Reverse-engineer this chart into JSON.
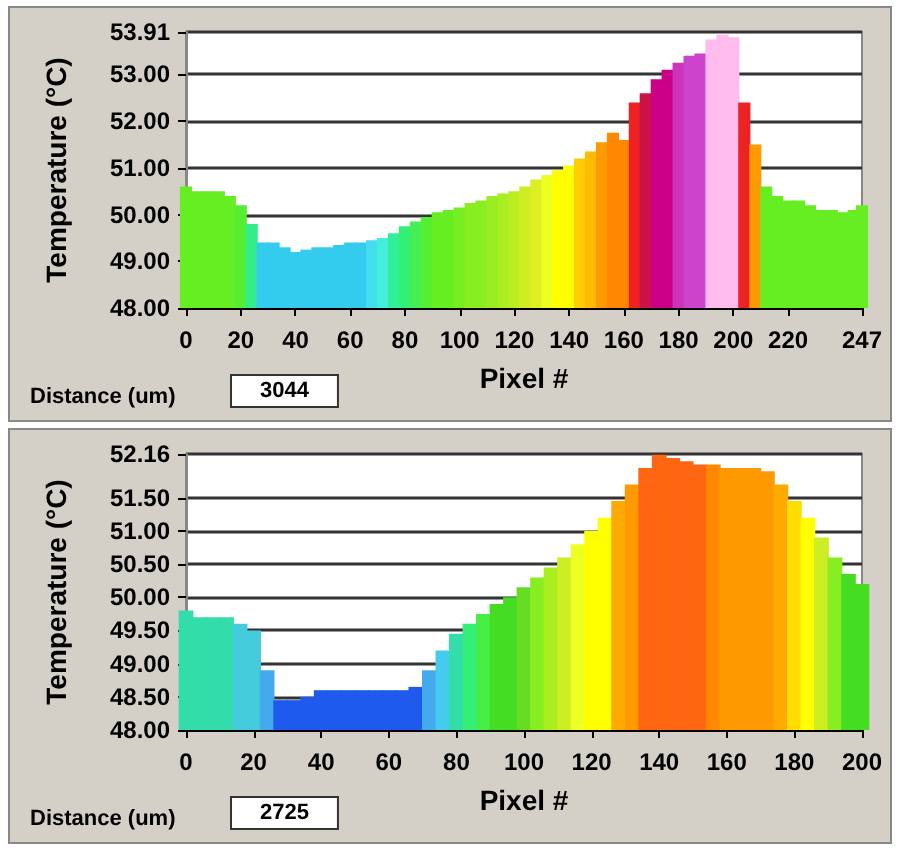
{
  "chart_data": [
    {
      "type": "bar",
      "xlabel": "Pixel #",
      "ylabel": "Temperature (°C)",
      "annotations": [
        "Distance (um)",
        "3044"
      ],
      "x": [
        0,
        4,
        8,
        12,
        16,
        20,
        24,
        28,
        32,
        36,
        40,
        44,
        48,
        52,
        56,
        60,
        64,
        68,
        72,
        76,
        80,
        84,
        88,
        92,
        96,
        100,
        104,
        108,
        112,
        116,
        120,
        124,
        128,
        132,
        136,
        140,
        144,
        148,
        152,
        156,
        160,
        164,
        168,
        172,
        176,
        180,
        184,
        188,
        192,
        196,
        200,
        204,
        208,
        212,
        216,
        220,
        224,
        228,
        232,
        236,
        240,
        244,
        247
      ],
      "values": [
        50.6,
        50.5,
        50.5,
        50.5,
        50.4,
        50.2,
        49.8,
        49.4,
        49.4,
        49.3,
        49.2,
        49.25,
        49.3,
        49.3,
        49.35,
        49.4,
        49.4,
        49.45,
        49.5,
        49.6,
        49.75,
        49.85,
        49.95,
        50.05,
        50.1,
        50.15,
        50.25,
        50.3,
        50.4,
        50.45,
        50.5,
        50.6,
        50.75,
        50.85,
        50.95,
        51.05,
        51.2,
        51.35,
        51.55,
        51.75,
        51.6,
        52.4,
        52.6,
        52.9,
        53.1,
        53.25,
        53.4,
        53.45,
        53.75,
        53.85,
        53.8,
        52.4,
        51.5,
        50.6,
        50.4,
        50.3,
        50.3,
        50.2,
        50.1,
        50.1,
        50.05,
        50.1,
        50.2
      ],
      "colors": [
        "#66ee22",
        "#66ee22",
        "#66ee22",
        "#66ee22",
        "#66ee22",
        "#55ee33",
        "#33ee88",
        "#33ccee",
        "#33ccee",
        "#33ccee",
        "#33ccee",
        "#33ccee",
        "#33ccee",
        "#33ccee",
        "#33ccee",
        "#33ccee",
        "#33ccee",
        "#44ddee",
        "#44eedd",
        "#33ee99",
        "#33ee77",
        "#44ee55",
        "#55ee33",
        "#66ee22",
        "#66ee22",
        "#77ee22",
        "#88ee22",
        "#88ee22",
        "#99ee22",
        "#aaee22",
        "#bbee22",
        "#ccee22",
        "#ddee22",
        "#eeff22",
        "#ffff00",
        "#ffff00",
        "#ffcc00",
        "#ffbb00",
        "#ff9900",
        "#ff8800",
        "#ff8800",
        "#ee2222",
        "#cc1144",
        "#cc0088",
        "#cc0088",
        "#cc33bb",
        "#cc44cc",
        "#cc44cc",
        "#ffbbee",
        "#ffbbee",
        "#ffbbee",
        "#ee2222",
        "#ff9900",
        "#66ee22",
        "#66ee22",
        "#66ee22",
        "#66ee22",
        "#66ee22",
        "#66ee22",
        "#66ee22",
        "#66ee22",
        "#66ee22",
        "#66ee22"
      ],
      "xlim": [
        0,
        247
      ],
      "xticks": [
        0,
        20,
        40,
        60,
        80,
        100,
        120,
        140,
        160,
        180,
        200,
        220,
        247
      ],
      "ylim": [
        48,
        53.91
      ],
      "yticks": [
        {
          "value": 48,
          "label": "48.00"
        },
        {
          "value": 49,
          "label": "49.00"
        },
        {
          "value": 50,
          "label": "50.00"
        },
        {
          "value": 51,
          "label": "51.00"
        },
        {
          "value": 52,
          "label": "52.00"
        },
        {
          "value": 53,
          "label": "53.00"
        },
        {
          "value": 53.91,
          "label": "53.91"
        }
      ],
      "grid": "y"
    },
    {
      "type": "bar",
      "xlabel": "Pixel #",
      "ylabel": "Temperature (°C)",
      "annotations": [
        "Distance (um)",
        "2725"
      ],
      "x": [
        0,
        4,
        8,
        12,
        16,
        20,
        24,
        28,
        32,
        36,
        40,
        44,
        48,
        52,
        56,
        60,
        64,
        68,
        72,
        76,
        80,
        84,
        88,
        92,
        96,
        100,
        104,
        108,
        112,
        116,
        120,
        124,
        128,
        132,
        136,
        140,
        144,
        148,
        152,
        156,
        160,
        164,
        168,
        172,
        176,
        180,
        184,
        188,
        192,
        196,
        200
      ],
      "values": [
        49.8,
        49.7,
        49.7,
        49.7,
        49.6,
        49.5,
        48.9,
        48.45,
        48.45,
        48.5,
        48.6,
        48.6,
        48.6,
        48.6,
        48.6,
        48.6,
        48.6,
        48.65,
        48.9,
        49.2,
        49.45,
        49.6,
        49.75,
        49.9,
        50,
        50.15,
        50.3,
        50.45,
        50.6,
        50.8,
        51,
        51.2,
        51.45,
        51.7,
        51.95,
        52.15,
        52.1,
        52.05,
        52,
        52,
        51.95,
        51.95,
        51.95,
        51.9,
        51.7,
        51.45,
        51.2,
        50.9,
        50.6,
        50.35,
        50.2
      ],
      "colors": [
        "#33ddaa",
        "#33ddaa",
        "#33ddaa",
        "#33ddaa",
        "#44ccdd",
        "#44ccdd",
        "#44aaee",
        "#1e5aee",
        "#1e5aee",
        "#1e5aee",
        "#1e5aee",
        "#1e5aee",
        "#1e5aee",
        "#1e5aee",
        "#1e5aee",
        "#1e5aee",
        "#1e5aee",
        "#1e5aee",
        "#44aaee",
        "#44ccee",
        "#33ddaa",
        "#33ee77",
        "#44ee44",
        "#44dd22",
        "#44dd22",
        "#66dd22",
        "#88ee22",
        "#aaee22",
        "#ccee22",
        "#eeff22",
        "#ffff00",
        "#ffff00",
        "#ffaa00",
        "#ff9900",
        "#ff6611",
        "#ff6611",
        "#ff6611",
        "#ff6611",
        "#ff6611",
        "#ff8800",
        "#ff9900",
        "#ff9900",
        "#ff9900",
        "#ff9900",
        "#ffaa00",
        "#ffdd00",
        "#ffff00",
        "#ccee22",
        "#88ee22",
        "#44dd22",
        "#44dd22"
      ],
      "xlim": [
        0,
        200
      ],
      "xticks": [
        0,
        20,
        40,
        60,
        80,
        100,
        120,
        140,
        160,
        180,
        200
      ],
      "ylim": [
        48,
        52.16
      ],
      "yticks": [
        {
          "value": 48,
          "label": "48.00"
        },
        {
          "value": 48.5,
          "label": "48.50"
        },
        {
          "value": 49,
          "label": "49.00"
        },
        {
          "value": 49.5,
          "label": "49.50"
        },
        {
          "value": 50,
          "label": "50.00"
        },
        {
          "value": 50.5,
          "label": "50.50"
        },
        {
          "value": 51,
          "label": "51.00"
        },
        {
          "value": 51.5,
          "label": "51.50"
        },
        {
          "value": 52.16,
          "label": "52.16"
        }
      ],
      "grid": "y"
    }
  ]
}
